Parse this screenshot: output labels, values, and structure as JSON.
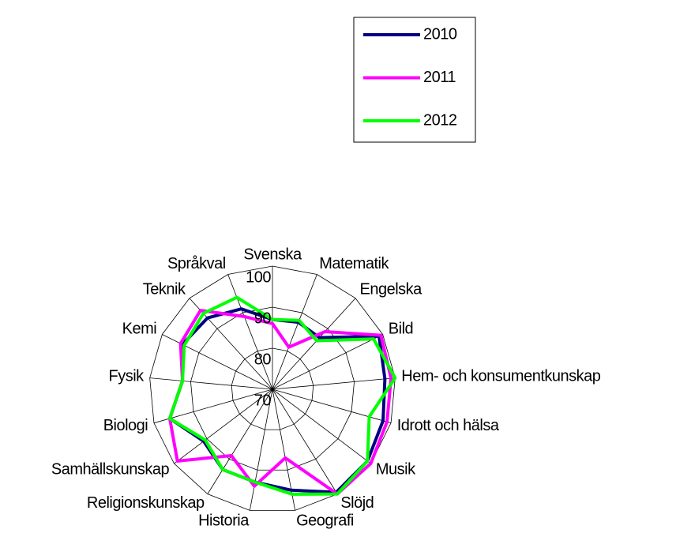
{
  "chart_data": {
    "type": "radar",
    "categories": [
      "Svenska",
      "Matematik",
      "Engelska",
      "Bild",
      "Hem- och konsumentkunskap",
      "Idrott och hälsa",
      "Musik",
      "Slöjd",
      "Geografi",
      "Historia",
      "Religionskunskap",
      "Samhällskunskap",
      "Biologi",
      "Fysik",
      "Kemi",
      "Teknik",
      "Språkval"
    ],
    "series": [
      {
        "name": "2010",
        "color": "#000080",
        "values": [
          87,
          87.5,
          87,
          99,
          97.5,
          98,
          99,
          99.5,
          95,
          93,
          93,
          91,
          96,
          92,
          94.5,
          93.5,
          91
        ]
      },
      {
        "name": "2011",
        "color": "#ff00ff",
        "values": [
          86,
          81,
          89,
          99.5,
          99,
          99,
          100,
          100,
          87,
          94,
          89,
          99,
          96,
          92,
          95,
          96,
          89
        ]
      },
      {
        "name": "2012",
        "color": "#00ff00",
        "values": [
          87,
          88,
          86,
          97.5,
          100,
          94.5,
          99,
          100,
          96,
          93,
          93,
          90.5,
          96,
          92,
          94,
          95,
          94
        ]
      }
    ],
    "ylim": [
      70,
      100
    ],
    "yticks": [
      70,
      80,
      90,
      100
    ],
    "grid": true,
    "legend": "top-right"
  }
}
